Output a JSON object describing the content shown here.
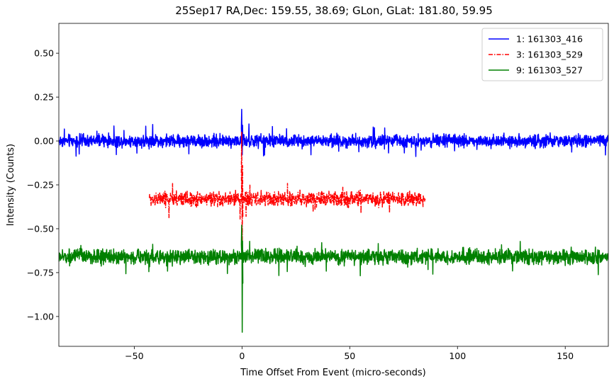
{
  "chart_data": {
    "type": "line",
    "title": "25Sep17 RA,Dec:  159.55,  38.69; GLon, GLat:  181.80,  59.95",
    "xlabel": "Time Offset From Event (micro-seconds)",
    "ylabel": "Intensity (Counts)",
    "xlim": [
      -85,
      170
    ],
    "ylim": [
      -1.17,
      0.67
    ],
    "xticks": [
      -50,
      0,
      50,
      100,
      150
    ],
    "xtick_labels": [
      "−50",
      "0",
      "50",
      "100",
      "150"
    ],
    "yticks": [
      0.5,
      0.25,
      0.0,
      -0.25,
      -0.5,
      -0.75,
      -1.0
    ],
    "ytick_labels": [
      "0.50",
      "0.25",
      "0.00",
      "−0.25",
      "−0.50",
      "−0.75",
      "−1.00"
    ],
    "grid": false,
    "legend_position": "upper-right",
    "series": [
      {
        "name": "1: 161303_416",
        "color": "#0000ff",
        "linestyle": "solid",
        "x_range": [
          -85,
          170
        ],
        "baseline": 0.0,
        "noise_amplitude": 0.03,
        "event": {
          "x": 0.0,
          "peak": 0.18,
          "trough": -0.08
        }
      },
      {
        "name": "3: 161303_529",
        "color": "#ff0000",
        "linestyle": "dashdot",
        "x_range": [
          -43,
          85
        ],
        "baseline": -0.33,
        "noise_amplitude": 0.035,
        "event": {
          "x": 0.0,
          "peak": 0.05,
          "trough": -0.63
        }
      },
      {
        "name": "9: 161303_527",
        "color": "#008000",
        "linestyle": "solid",
        "x_range": [
          -85,
          170
        ],
        "baseline": -0.66,
        "noise_amplitude": 0.035,
        "event": {
          "x": 0.0,
          "peak": -0.48,
          "trough": -1.09
        }
      }
    ]
  }
}
